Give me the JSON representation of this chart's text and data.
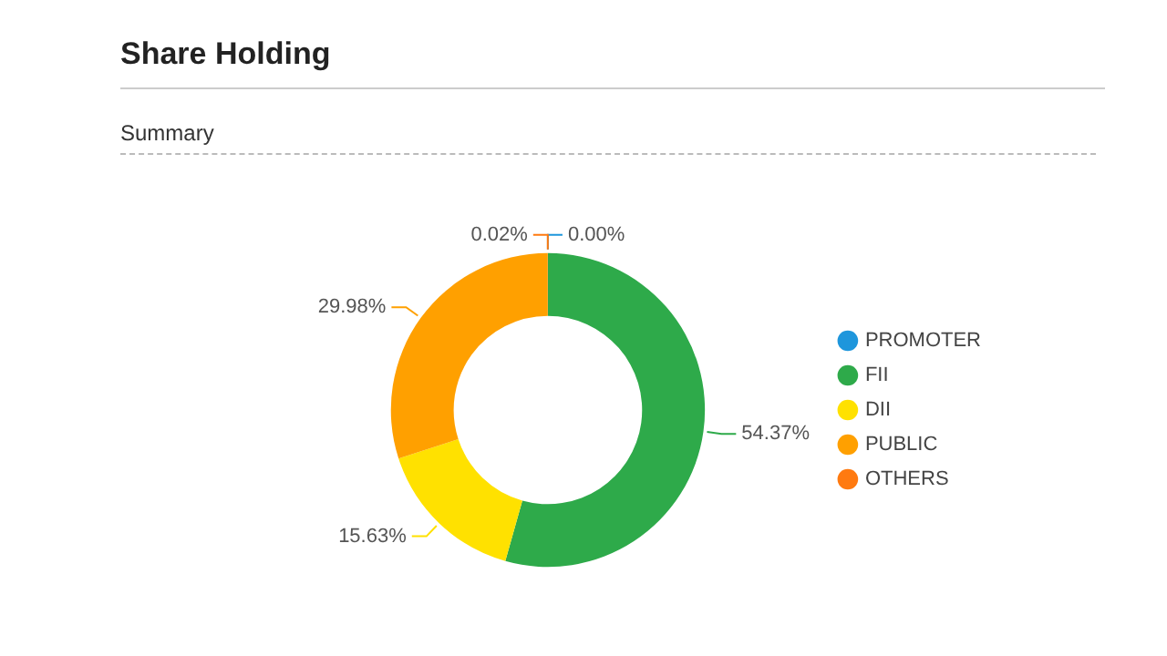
{
  "chart_data": {
    "type": "donut",
    "title": "Share Holding",
    "subtitle": "Summary",
    "categories": [
      "PROMOTER",
      "FII",
      "DII",
      "PUBLIC",
      "OTHERS"
    ],
    "values": [
      0.0,
      54.37,
      15.63,
      29.98,
      0.02
    ],
    "value_labels": [
      "0.00%",
      "54.37%",
      "15.63%",
      "29.98%",
      "0.02%"
    ],
    "colors": [
      "#1e96dc",
      "#2eaa4a",
      "#ffe100",
      "#ffa000",
      "#ff7a10"
    ],
    "legend": "right"
  }
}
